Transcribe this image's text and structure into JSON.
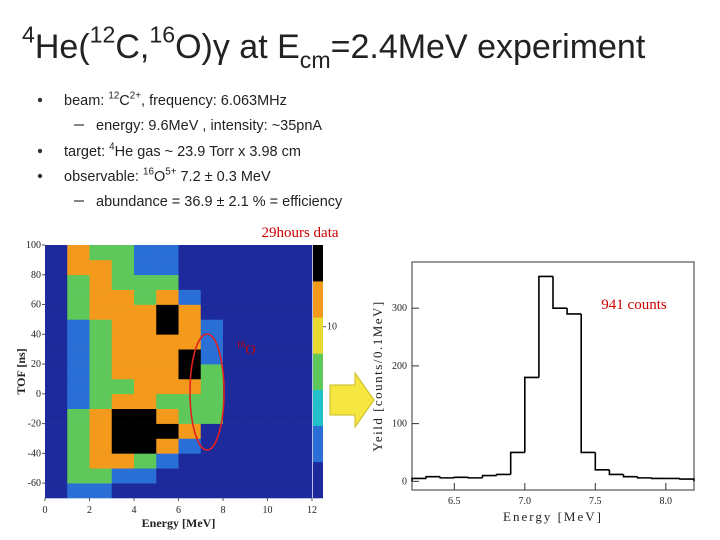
{
  "title": [
    "",
    {
      "sup": "4"
    },
    "He(",
    {
      "sup": "12"
    },
    "C,",
    {
      "sup": "16"
    },
    "O)γ at E",
    {
      "sub": "cm"
    },
    "=2.4MeV experiment"
  ],
  "bullets": [
    {
      "level": 1,
      "runs": [
        "beam: ",
        {
          "sup": "12"
        },
        "C",
        {
          "sup": "2+"
        },
        ", frequency: 6.063MHz"
      ]
    },
    {
      "level": 2,
      "runs": [
        "energy: 9.6MeV , intensity: ~35pnA"
      ]
    },
    {
      "level": 1,
      "runs": [
        "target: ",
        {
          "sup": "4"
        },
        "He gas  ~ 23.9 Torr x 3.98 cm"
      ]
    },
    {
      "level": 1,
      "runs": [
        "observable: ",
        {
          "sup": "16"
        },
        "O",
        {
          "sup": "5+"
        },
        "   7.2 ± 0.3 MeV"
      ]
    },
    {
      "level": 2,
      "runs": [
        "abundance = 36.9 ± 2.1 % = efficiency"
      ]
    }
  ],
  "annotations": {
    "duration": "29hours data",
    "counts": "941 counts",
    "ion": [
      "",
      {
        "sup": "16"
      },
      "O"
    ]
  },
  "chart_data": [
    {
      "type": "heatmap",
      "xlabel": "Energy [MeV]",
      "ylabel": "TOF [ns]",
      "xbins": [
        0,
        1,
        2,
        3,
        4,
        5,
        6,
        7,
        8,
        9,
        10,
        11,
        12
      ],
      "ybins": [
        -70,
        -60,
        -50,
        -40,
        -30,
        -20,
        -10,
        0,
        10,
        20,
        30,
        40,
        50,
        60,
        70,
        80,
        90,
        100
      ],
      "values": [
        [
          1,
          2,
          2,
          1,
          1,
          1,
          1,
          1,
          1,
          1,
          1,
          1
        ],
        [
          1,
          5,
          5,
          2,
          2,
          1,
          1,
          1,
          1,
          1,
          1,
          1
        ],
        [
          1,
          5,
          12,
          12,
          5,
          2,
          1,
          1,
          1,
          1,
          1,
          1
        ],
        [
          1,
          5,
          12,
          30,
          30,
          12,
          2,
          1,
          1,
          1,
          1,
          1
        ],
        [
          1,
          5,
          12,
          30,
          30,
          30,
          12,
          1,
          1,
          1,
          1,
          1
        ],
        [
          1,
          5,
          12,
          30,
          30,
          12,
          5,
          5,
          1,
          1,
          1,
          1
        ],
        [
          1,
          2,
          5,
          12,
          12,
          5,
          5,
          5,
          1,
          1,
          1,
          1
        ],
        [
          1,
          2,
          5,
          5,
          12,
          12,
          12,
          5,
          1,
          1,
          1,
          1
        ],
        [
          1,
          2,
          5,
          12,
          12,
          12,
          30,
          5,
          1,
          1,
          1,
          1
        ],
        [
          1,
          2,
          5,
          12,
          12,
          12,
          30,
          2,
          1,
          1,
          1,
          1
        ],
        [
          1,
          2,
          5,
          12,
          12,
          12,
          12,
          2,
          1,
          1,
          1,
          1
        ],
        [
          1,
          2,
          5,
          12,
          12,
          30,
          12,
          2,
          1,
          1,
          1,
          1
        ],
        [
          1,
          5,
          12,
          12,
          12,
          30,
          12,
          1,
          1,
          1,
          1,
          1
        ],
        [
          1,
          5,
          12,
          12,
          5,
          12,
          2,
          1,
          1,
          1,
          1,
          1
        ],
        [
          1,
          5,
          12,
          5,
          5,
          5,
          1,
          1,
          1,
          1,
          1,
          1
        ],
        [
          1,
          12,
          12,
          5,
          2,
          2,
          1,
          1,
          1,
          1,
          1,
          1
        ],
        [
          1,
          12,
          5,
          5,
          2,
          2,
          1,
          1,
          1,
          1,
          1,
          1
        ]
      ],
      "xlim": [
        0,
        12
      ],
      "ylim": [
        -70,
        100
      ],
      "xticks": [
        0,
        2,
        4,
        6,
        8,
        10,
        12
      ],
      "yticks": [
        -60,
        -40,
        -20,
        0,
        20,
        40,
        60,
        80,
        100
      ],
      "zlim": [
        1,
        30
      ],
      "zlog": true,
      "zticks": [
        10
      ],
      "colorscale": [
        "#1c2a9c",
        "#2a6fd6",
        "#22c0c8",
        "#5ec85a",
        "#e8d830",
        "#f39a1c",
        "#000000"
      ]
    },
    {
      "type": "histogram",
      "xlabel": "Energy [MeV]",
      "ylabel": "Yeild [counts/0.1MeV]",
      "color": "#000000",
      "bins": [
        6.2,
        6.3,
        6.4,
        6.5,
        6.6,
        6.7,
        6.8,
        6.9,
        7.0,
        7.1,
        7.2,
        7.3,
        7.4,
        7.5,
        7.6,
        7.7,
        7.8,
        7.9,
        8.0,
        8.1,
        8.2
      ],
      "values": [
        5,
        8,
        6,
        7,
        6,
        10,
        12,
        50,
        180,
        355,
        300,
        290,
        50,
        20,
        12,
        8,
        6,
        5,
        5,
        4
      ],
      "xlim": [
        6.2,
        8.2
      ],
      "ylim": [
        -15,
        380
      ],
      "xticks": [
        6.5,
        {
          "value": 7,
          "label": "7.0"
        },
        7.5,
        {
          "value": 8,
          "label": "8.0"
        }
      ],
      "yticks": [
        0,
        100,
        200,
        300
      ]
    }
  ]
}
